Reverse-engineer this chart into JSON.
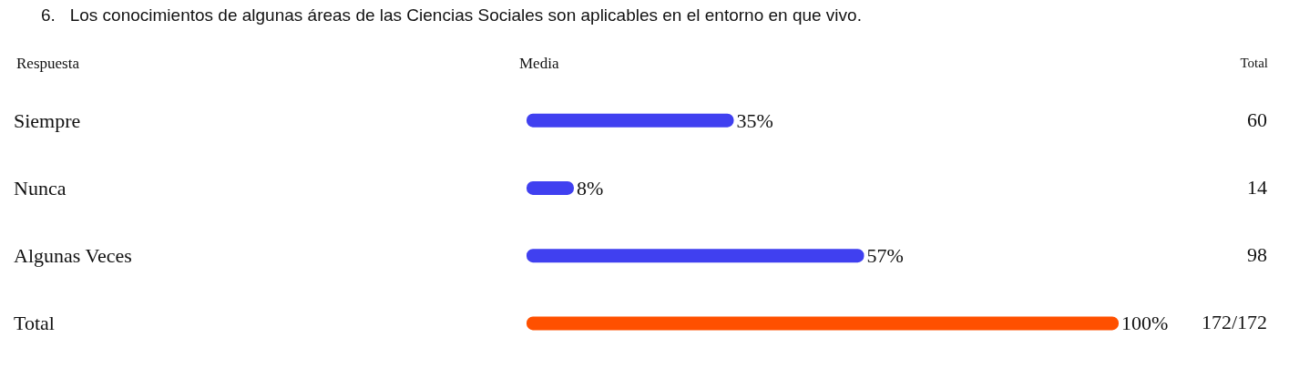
{
  "chart_data": {
    "type": "bar",
    "orientation": "horizontal",
    "title": "6.   Los conocimientos de algunas áreas de las Ciencias Sociales son aplicables en el entorno en que vivo.",
    "ylabel": "Respuesta",
    "xlabel": "Media",
    "categories": [
      "Siempre",
      "Nunca",
      "Algunas Veces",
      "Total"
    ],
    "values": [
      35,
      8,
      57,
      100
    ],
    "colors": [
      "#4040f0",
      "#4040f0",
      "#4040f0",
      "#ff5000"
    ],
    "value_labels": [
      "35%",
      "8%",
      "57%",
      "100%"
    ],
    "xlim": [
      0,
      100
    ],
    "tick_labels": "y",
    "grid": false,
    "annotations": [
      "Total",
      "60",
      "14",
      "98",
      "172/172"
    ]
  }
}
